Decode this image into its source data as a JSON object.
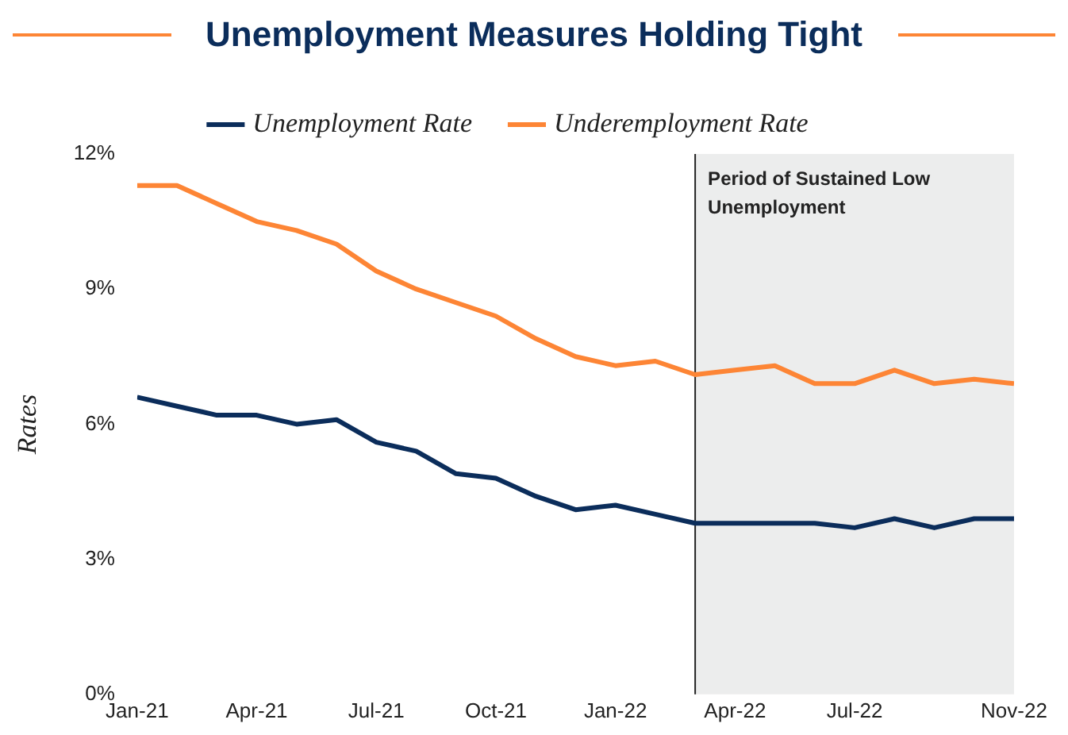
{
  "chart_data": {
    "type": "line",
    "title": "Unemployment Measures Holding Tight",
    "ylabel": "Rates",
    "x": [
      "2021-01",
      "2021-02",
      "2021-03",
      "2021-04",
      "2021-05",
      "2021-06",
      "2021-07",
      "2021-08",
      "2021-09",
      "2021-10",
      "2021-11",
      "2021-12",
      "2022-01",
      "2022-02",
      "2022-03",
      "2022-04",
      "2022-05",
      "2022-06",
      "2022-07",
      "2022-08",
      "2022-09",
      "2022-10",
      "2022-11"
    ],
    "series": [
      {
        "name": "Unemployment Rate",
        "color": "#0b2d5b",
        "values": [
          6.6,
          6.4,
          6.2,
          6.2,
          6.0,
          6.1,
          5.6,
          5.4,
          4.9,
          4.8,
          4.4,
          4.1,
          4.2,
          4.0,
          3.8,
          3.8,
          3.8,
          3.8,
          3.7,
          3.9,
          3.7,
          3.9,
          3.9
        ]
      },
      {
        "name": "Underemployment Rate",
        "color": "#fd8535",
        "values": [
          11.3,
          11.3,
          10.9,
          10.5,
          10.3,
          10.0,
          9.4,
          9.0,
          8.7,
          8.4,
          7.9,
          7.5,
          7.3,
          7.4,
          7.1,
          7.2,
          7.3,
          6.9,
          6.9,
          7.2,
          6.9,
          7.0,
          6.9
        ]
      }
    ],
    "xlim": [
      "2021-01",
      "2022-11"
    ],
    "xticks": [
      {
        "value": "2021-01",
        "label": "Jan-21"
      },
      {
        "value": "2021-04",
        "label": "Apr-21"
      },
      {
        "value": "2021-07",
        "label": "Jul-21"
      },
      {
        "value": "2021-10",
        "label": "Oct-21"
      },
      {
        "value": "2022-01",
        "label": "Jan-22"
      },
      {
        "value": "2022-04",
        "label": "Apr-22"
      },
      {
        "value": "2022-07",
        "label": "Jul-22"
      },
      {
        "value": "2022-11",
        "label": "Nov-22"
      }
    ],
    "ylim": [
      0,
      12
    ],
    "yticks": [
      {
        "value": 0,
        "label": "0%"
      },
      {
        "value": 3,
        "label": "3%"
      },
      {
        "value": 6,
        "label": "6%"
      },
      {
        "value": 9,
        "label": "9%"
      },
      {
        "value": 12,
        "label": "12%"
      }
    ],
    "bands": [
      {
        "axis": "x",
        "from": "2022-03",
        "to": "2022-11",
        "label": "Period of Sustained Low Unemployment",
        "color": "#eceded"
      }
    ],
    "ref_lines": [
      {
        "axis": "x",
        "value": "2022-03",
        "color": "#222222"
      }
    ],
    "grid": false,
    "legend": "top",
    "marker": "none",
    "line_style": "solid"
  }
}
